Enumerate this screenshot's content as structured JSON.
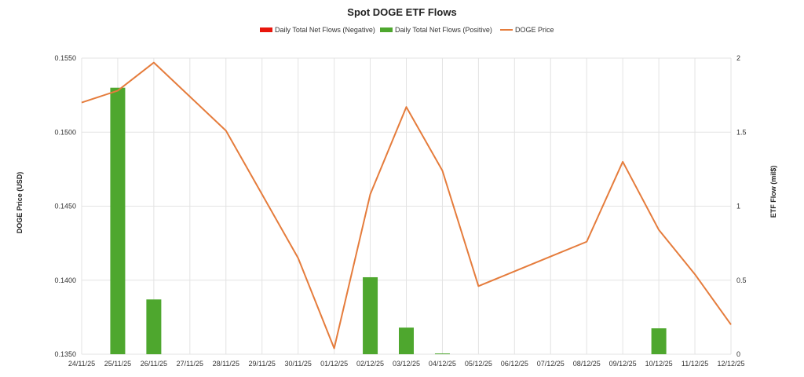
{
  "chart_data": {
    "type": "bar",
    "title": "Spot DOGE ETF Flows",
    "legend_position": "top",
    "grid": true,
    "categories": [
      "24/11/25",
      "25/11/25",
      "26/11/25",
      "27/11/25",
      "28/11/25",
      "29/11/25",
      "30/11/25",
      "01/12/25",
      "02/12/25",
      "03/12/25",
      "04/12/25",
      "05/12/25",
      "06/12/25",
      "07/12/25",
      "08/12/25",
      "09/12/25",
      "10/12/25",
      "11/12/25",
      "12/12/25"
    ],
    "left_axis": {
      "label": "DOGE Price (USD)",
      "range": [
        0.135,
        0.155
      ],
      "ticks": [
        "0.1350",
        "0.1400",
        "0.1450",
        "0.1500",
        "0.1550"
      ]
    },
    "right_axis": {
      "label": "ETF Flow (mil$)",
      "range": [
        0,
        2
      ],
      "ticks": [
        "0",
        "0.5",
        "1",
        "1.5",
        "2"
      ]
    },
    "series": [
      {
        "name": "Daily Total Net Flows (Negative)",
        "type": "bar",
        "axis": "right",
        "color": "#e8160c",
        "values": [
          0,
          0,
          0,
          0,
          0,
          0,
          0,
          0,
          0,
          0,
          0,
          0,
          0,
          0,
          0,
          0,
          0,
          0,
          0
        ]
      },
      {
        "name": "Daily Total Net Flows (Positive)",
        "type": "bar",
        "axis": "right",
        "color": "#4ea72e",
        "values": [
          0,
          1.8,
          0.37,
          0,
          0,
          0,
          0,
          0,
          0.52,
          0.18,
          0.005,
          0,
          0,
          0,
          0,
          0,
          0.175,
          0,
          0
        ]
      },
      {
        "name": "DOGE Price",
        "type": "line",
        "axis": "left",
        "color": "#e57c3c",
        "values": [
          0.152,
          0.1528,
          0.1547,
          0.1524,
          0.1501,
          0.1458,
          0.1415,
          0.1354,
          0.1458,
          0.1517,
          0.1474,
          0.1396,
          0.1406,
          0.1416,
          0.1426,
          0.148,
          0.1434,
          0.1404,
          0.137
        ]
      }
    ]
  }
}
